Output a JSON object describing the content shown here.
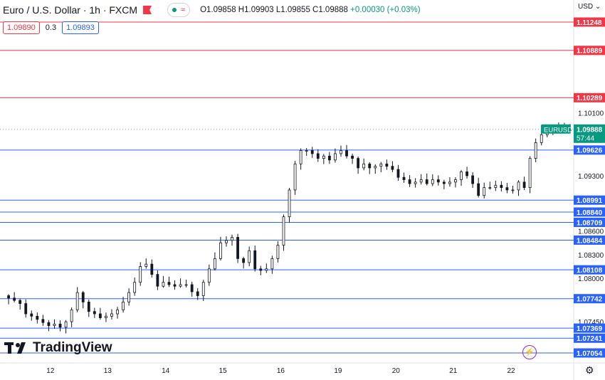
{
  "header": {
    "title": "Euro / U.S. Dollar · 1h · FXCM",
    "ohlc": "O1.09858 H1.09903 L1.09855 C1.09888",
    "change": "+0.00030 (+0.03%)"
  },
  "prices": {
    "bid": "1.09890",
    "spread": "0.3",
    "ask": "1.09893"
  },
  "currency": "USD",
  "brand": "TradingView",
  "chart_data": {
    "type": "candlestick",
    "symbol_label": "EURUSD",
    "last_price": 1.09888,
    "countdown": "57:44",
    "ylim": [
      1.0695,
      1.1138
    ],
    "y_ticks": [
      "1.10100",
      "1.09300",
      "1.08600",
      "1.08300",
      "1.08000",
      "1.07450"
    ],
    "x_ticks": [
      {
        "label": "12",
        "t": 7.3
      },
      {
        "label": "13",
        "t": 17.3
      },
      {
        "label": "14",
        "t": 27.4
      },
      {
        "label": "15",
        "t": 37.4
      },
      {
        "label": "16",
        "t": 47.5
      },
      {
        "label": "19",
        "t": 57.5
      },
      {
        "label": "20",
        "t": 67.6
      },
      {
        "label": "21",
        "t": 77.6
      },
      {
        "label": "22",
        "t": 87.7
      }
    ],
    "xlim": [
      -1.5,
      98.5
    ],
    "levels": [
      {
        "value": 1.11248,
        "label": "1.11248",
        "color": "#f23645"
      },
      {
        "value": 1.10889,
        "label": "1.10889",
        "color": "#f23645"
      },
      {
        "value": 1.10289,
        "label": "1.10289",
        "color": "#f23645"
      },
      {
        "value": 1.09626,
        "label": "1.09626",
        "color": "#2962ff"
      },
      {
        "value": 1.08991,
        "label": "1.08991",
        "color": "#2962ff"
      },
      {
        "value": 1.0884,
        "label": "1.08840",
        "color": "#2962ff"
      },
      {
        "value": 1.08709,
        "label": "1.08709",
        "color": "#2962ff"
      },
      {
        "value": 1.08484,
        "label": "1.08484",
        "color": "#2962ff"
      },
      {
        "value": 1.08108,
        "label": "1.08108",
        "color": "#2962ff"
      },
      {
        "value": 1.07742,
        "label": "1.07742",
        "color": "#2962ff"
      },
      {
        "value": 1.07369,
        "label": "1.07369",
        "color": "#2962ff"
      },
      {
        "value": 1.07241,
        "label": "1.07241",
        "color": "#2962ff"
      },
      {
        "value": 1.07054,
        "label": "1.07054",
        "color": "#2962ff"
      }
    ],
    "closes": [
      1.0775,
      1.0772,
      1.0768,
      1.0755,
      1.0752,
      1.0748,
      1.0744,
      1.074,
      1.0742,
      1.0738,
      1.0745,
      1.076,
      1.0782,
      1.077,
      1.0758,
      1.0755,
      1.075,
      1.0752,
      1.0755,
      1.076,
      1.077,
      1.0782,
      1.0795,
      1.0815,
      1.0818,
      1.0805,
      1.079,
      1.0795,
      1.0792,
      1.079,
      1.0792,
      1.0792,
      1.0783,
      1.0778,
      1.0795,
      1.0812,
      1.0825,
      1.0845,
      1.0848,
      1.0852,
      1.0825,
      1.082,
      1.0835,
      1.0812,
      1.081,
      1.0812,
      1.0825,
      1.0842,
      1.0878,
      1.0912,
      1.0945,
      1.0962,
      1.0962,
      1.0958,
      1.0952,
      1.0955,
      1.095,
      1.0958,
      1.0962,
      1.0955,
      1.0952,
      1.094,
      1.0945,
      1.094,
      1.0942,
      1.0945,
      1.0942,
      1.0938,
      1.0928,
      1.0925,
      1.092,
      1.0922,
      1.0925,
      1.092,
      1.0925,
      1.0922,
      1.092,
      1.0922,
      1.0925,
      1.0935,
      1.093,
      1.092,
      1.0905,
      1.0915,
      1.0915,
      1.0918,
      1.0915,
      1.0912,
      1.0912,
      1.0922,
      1.0915,
      1.0952,
      1.0972,
      1.0982,
      1.0985,
      1.0988,
      1.099,
      1.0988,
      1.0988
    ],
    "candle_up_color": "#089981",
    "candle_down_color": "#f23645",
    "candle_color_rendered": "#131722"
  }
}
